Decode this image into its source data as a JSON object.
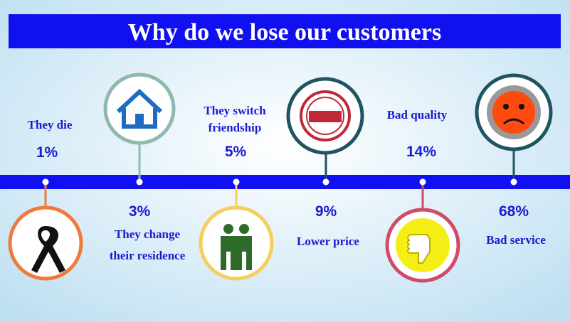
{
  "title": "Why do we lose our customers",
  "items": [
    {
      "label": [
        "They die"
      ],
      "value": "1%"
    },
    {
      "label": [
        "They change",
        "their residence"
      ],
      "value": "3%"
    },
    {
      "label": [
        "They switch",
        "friendship"
      ],
      "value": "5%"
    },
    {
      "label": [
        "Lower price"
      ],
      "value": "9%"
    },
    {
      "label": [
        "Bad quality"
      ],
      "value": "14%"
    },
    {
      "label": [
        "Bad service"
      ],
      "value": "68%"
    }
  ]
}
